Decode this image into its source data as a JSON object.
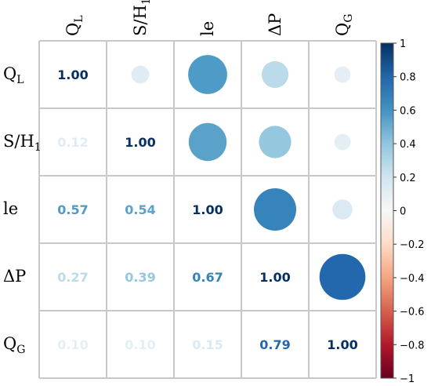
{
  "chart_data": {
    "type": "heatmap",
    "title": "",
    "variables": [
      {
        "base": "Q",
        "sub": "L"
      },
      {
        "base": "S/H",
        "sub": "1"
      },
      {
        "base": "le",
        "sub": ""
      },
      {
        "base": "ΔP",
        "sub": ""
      },
      {
        "base": "Q",
        "sub": "G"
      }
    ],
    "correlation_matrix": [
      [
        1.0,
        0.12,
        0.57,
        0.27,
        0.1
      ],
      [
        0.12,
        1.0,
        0.54,
        0.39,
        0.1
      ],
      [
        0.57,
        0.54,
        1.0,
        0.67,
        0.15
      ],
      [
        0.27,
        0.39,
        0.67,
        1.0,
        0.79
      ],
      [
        0.1,
        0.1,
        0.15,
        0.79,
        1.0
      ]
    ],
    "lower_triangle": "numbers",
    "upper_triangle": "circles",
    "colorbar": {
      "range": [
        -1,
        1
      ],
      "ticks": [
        "1",
        "0.8",
        "0.6",
        "0.4",
        "0.2",
        "0",
        "−0.2",
        "−0.4",
        "−0.6",
        "−0.8",
        "−1"
      ],
      "colors": [
        "#67001f",
        "#b2182b",
        "#d6604d",
        "#f4a582",
        "#fddbc7",
        "#f7f7f7",
        "#d1e5f0",
        "#92c5de",
        "#4393c3",
        "#2166ac",
        "#053061"
      ]
    },
    "grid": true
  }
}
